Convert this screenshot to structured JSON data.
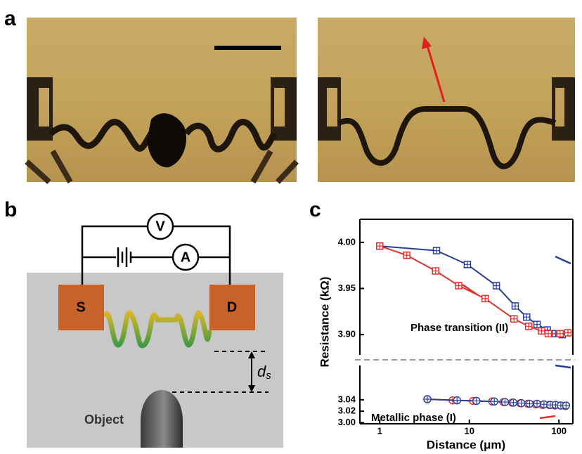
{
  "panel_labels": [
    "a",
    "b",
    "c"
  ],
  "schematic": {
    "voltmeter": "V",
    "ammeter": "A",
    "source": "S",
    "drain": "D",
    "distance_label": "d",
    "distance_subscript": "s",
    "object_label": "Object"
  },
  "chart_data": {
    "type": "line",
    "x_label": "Distance (μm)",
    "y_label": "Resistance (kΩ)",
    "xscale": "log",
    "xlim": [
      0.6,
      143
    ],
    "xticks": [
      1,
      10,
      100
    ],
    "panels": [
      {
        "annotation": "Phase transition (II)",
        "ylim": [
          3.878,
          4.025
        ],
        "yticks": [
          {
            "value": 3.9,
            "label": "3.90"
          },
          3.95,
          {
            "value": 4,
            "label": "4.00"
          }
        ],
        "series": [
          {
            "color": "#2a3f9a",
            "marker": "square",
            "x": [
              1,
              4.3,
              9.5,
              20,
              32.5,
              43.6,
              57,
              74,
              85,
              109
            ],
            "values": [
              3.996,
              3.991,
              3.976,
              3.953,
              3.931,
              3.919,
              3.911,
              3.905,
              3.901,
              3.9
            ]
          },
          {
            "color": "#e0312e",
            "marker": "square",
            "x": [
              1,
              2,
              4.2,
              7.6,
              15,
              31.5,
              46,
              64,
              76,
              103,
              126
            ],
            "values": [
              3.996,
              3.986,
              3.969,
              3.953,
              3.939,
              3.917,
              3.909,
              3.904,
              3.901,
              3.901,
              3.902
            ]
          }
        ]
      },
      {
        "annotation": "Metallic phase (I)",
        "ylim": [
          2.998,
          3.1
        ],
        "yticks": [
          {
            "value": 3,
            "label": "3.00"
          },
          3.02,
          3.04
        ],
        "series": [
          {
            "color": "#e0312e",
            "marker": "circle",
            "x": [
              3.4,
              6.5,
              11,
              18,
              24,
              30,
              37,
              45,
              55,
              66,
              78,
              90,
              104,
              118
            ],
            "values": [
              3.041,
              3.039,
              3.038,
              3.037,
              3.036,
              3.035,
              3.034,
              3.033,
              3.032,
              3.031,
              3.031,
              3.03,
              3.03,
              3.029
            ]
          },
          {
            "color": "#2a3f9a",
            "marker": "circle",
            "x": [
              3.4,
              7.3,
              12,
              19,
              25,
              31,
              38,
              47,
              57,
              68,
              80,
              92,
              105,
              120
            ],
            "values": [
              3.041,
              3.039,
              3.038,
              3.037,
              3.036,
              3.035,
              3.034,
              3.033,
              3.033,
              3.032,
              3.031,
              3.031,
              3.03,
              3.03
            ]
          }
        ]
      }
    ]
  }
}
